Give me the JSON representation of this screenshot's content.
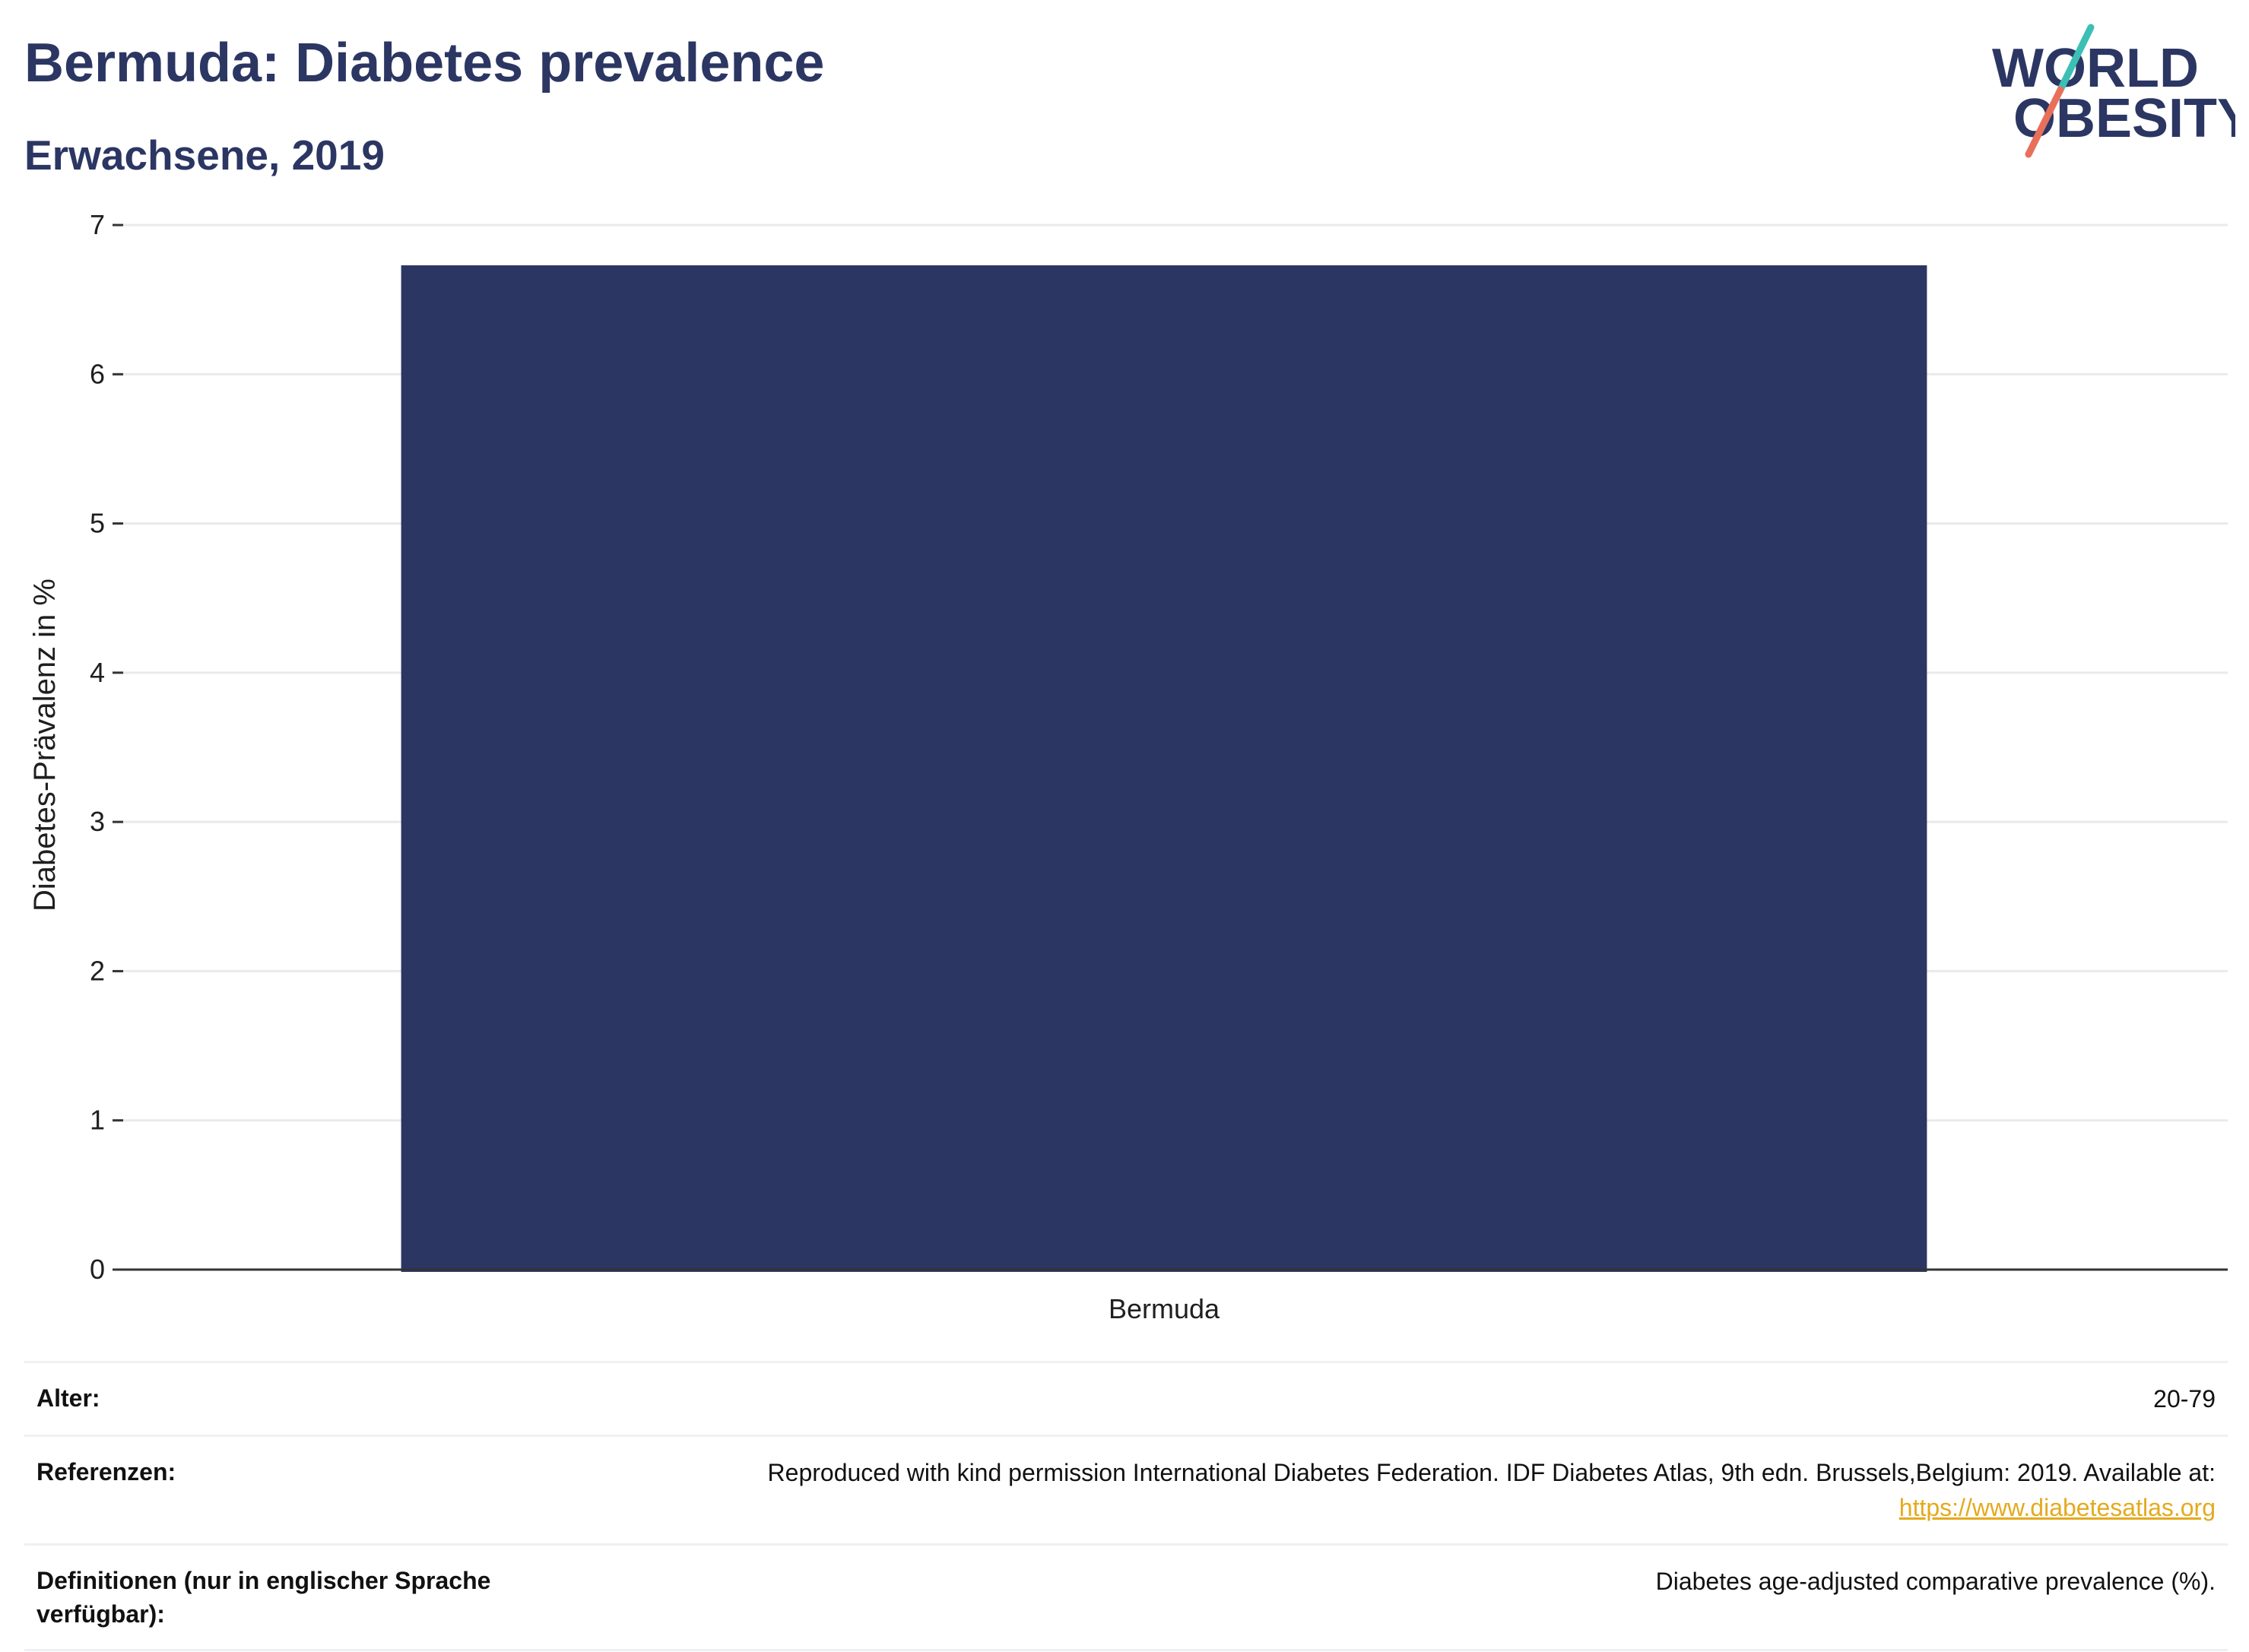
{
  "title": "Bermuda: Diabetes prevalence",
  "subtitle": "Erwachsene, 2019",
  "logo": {
    "line1": "WORLD",
    "line2": "OBESITY",
    "colors": {
      "text": "#2b3663",
      "slash_top": "#3cbfb5",
      "slash_bottom": "#e8705a"
    }
  },
  "chart_data": {
    "type": "bar",
    "categories": [
      "Bermuda"
    ],
    "values": [
      6.73
    ],
    "ylabel": "Diabetes-Prävalenz in %",
    "xlabel": "",
    "ylim": [
      0,
      7
    ],
    "yticks": [
      0,
      1,
      2,
      3,
      4,
      5,
      6,
      7
    ],
    "grid": true,
    "bar_color": "#2b3663"
  },
  "meta": {
    "age": {
      "label": "Alter:",
      "value": "20-79"
    },
    "references": {
      "label": "Referenzen:",
      "value": "Reproduced with kind permission International Diabetes Federation. IDF Diabetes Atlas, 9th edn. Brussels,Belgium: 2019. Available at:",
      "link": "https://www.diabetesatlas.org"
    },
    "definitions": {
      "label": "Definitionen (nur in englischer Sprache verfügbar):",
      "value": "Diabetes age-adjusted comparative prevalence (%)."
    }
  }
}
